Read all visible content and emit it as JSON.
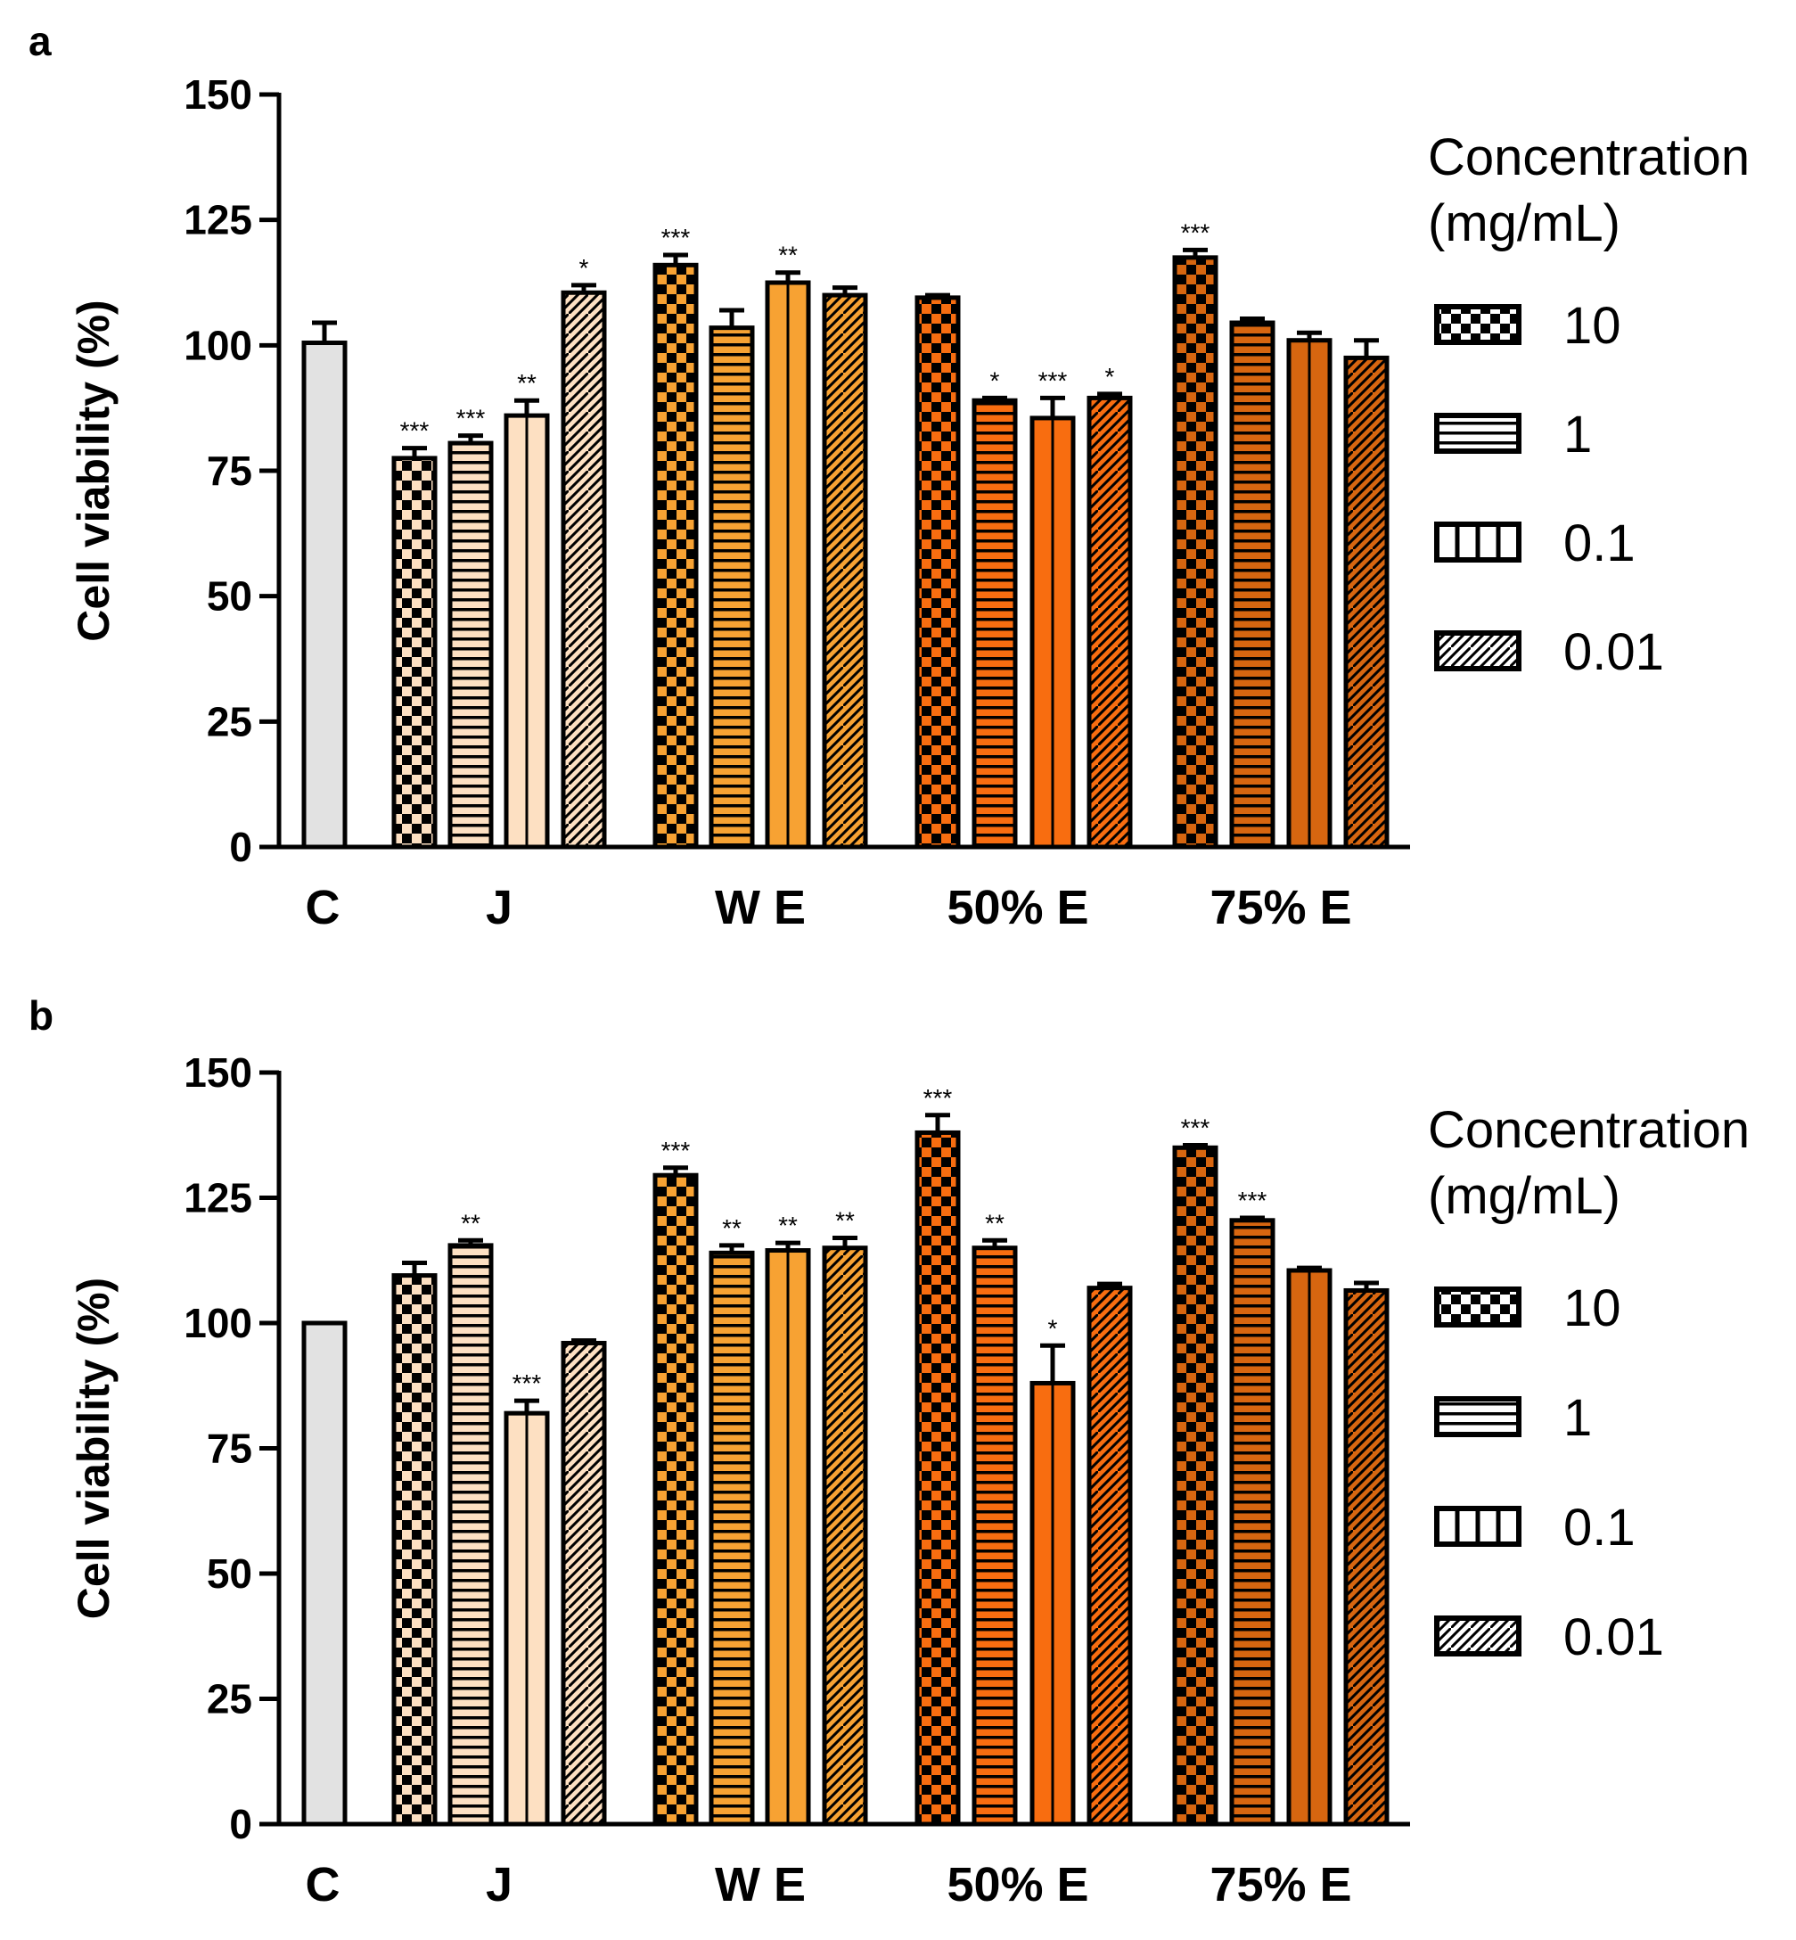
{
  "colors": {
    "control": "#e2e2e2",
    "J": "#fde0c2",
    "W E": "#f7a233",
    "50% E": "#f86d10",
    "75% E": "#d76610",
    "legend": "#ffffff",
    "stroke": "#000000"
  },
  "legend": {
    "title_line1": "Concentration",
    "title_line2": "(mg/mL)",
    "items": [
      {
        "label": "10",
        "pattern": "checker"
      },
      {
        "label": "1",
        "pattern": "hstripe"
      },
      {
        "label": "0.1",
        "pattern": "vstripe"
      },
      {
        "label": "0.01",
        "pattern": "diag"
      }
    ]
  },
  "chart_data": [
    {
      "panel": "a",
      "type": "bar",
      "ylabel": "Cell viability (%)",
      "ylim": [
        0,
        150
      ],
      "yticks": [
        "0",
        "25",
        "50",
        "75",
        "100",
        "125",
        "150"
      ],
      "groups": [
        "C",
        "J",
        "W E",
        "50% E",
        "75% E"
      ],
      "series_concentrations": [
        "10",
        "1",
        "0.1",
        "0.01"
      ],
      "bars": [
        {
          "group": "C",
          "concentration": "control",
          "value": 100.5,
          "err": 4.0,
          "sig": ""
        },
        {
          "group": "J",
          "concentration": "10",
          "value": 77.5,
          "err": 2.0,
          "sig": "***"
        },
        {
          "group": "J",
          "concentration": "1",
          "value": 80.5,
          "err": 1.5,
          "sig": "***"
        },
        {
          "group": "J",
          "concentration": "0.1",
          "value": 86.0,
          "err": 3.0,
          "sig": "**"
        },
        {
          "group": "J",
          "concentration": "0.01",
          "value": 110.5,
          "err": 1.5,
          "sig": "*"
        },
        {
          "group": "W E",
          "concentration": "10",
          "value": 116.0,
          "err": 2.0,
          "sig": "***"
        },
        {
          "group": "W E",
          "concentration": "1",
          "value": 103.5,
          "err": 3.5,
          "sig": ""
        },
        {
          "group": "W E",
          "concentration": "0.1",
          "value": 112.5,
          "err": 2.0,
          "sig": "**"
        },
        {
          "group": "W E",
          "concentration": "0.01",
          "value": 110.0,
          "err": 1.5,
          "sig": ""
        },
        {
          "group": "50% E",
          "concentration": "10",
          "value": 109.5,
          "err": 0.5,
          "sig": ""
        },
        {
          "group": "50% E",
          "concentration": "1",
          "value": 89.0,
          "err": 0.5,
          "sig": "*"
        },
        {
          "group": "50% E",
          "concentration": "0.1",
          "value": 85.5,
          "err": 4.0,
          "sig": "***"
        },
        {
          "group": "50% E",
          "concentration": "0.01",
          "value": 89.5,
          "err": 0.8,
          "sig": "*"
        },
        {
          "group": "75% E",
          "concentration": "10",
          "value": 117.5,
          "err": 1.5,
          "sig": "***"
        },
        {
          "group": "75% E",
          "concentration": "1",
          "value": 104.5,
          "err": 0.8,
          "sig": ""
        },
        {
          "group": "75% E",
          "concentration": "0.1",
          "value": 101.0,
          "err": 1.5,
          "sig": ""
        },
        {
          "group": "75% E",
          "concentration": "0.01",
          "value": 97.5,
          "err": 3.5,
          "sig": ""
        }
      ]
    },
    {
      "panel": "b",
      "type": "bar",
      "ylabel": "Cell viability (%)",
      "ylim": [
        0,
        150
      ],
      "yticks": [
        "0",
        "25",
        "50",
        "75",
        "100",
        "125",
        "150"
      ],
      "groups": [
        "C",
        "J",
        "W E",
        "50% E",
        "75% E"
      ],
      "series_concentrations": [
        "10",
        "1",
        "0.1",
        "0.01"
      ],
      "bars": [
        {
          "group": "C",
          "concentration": "control",
          "value": 100.0,
          "err": 0,
          "sig": ""
        },
        {
          "group": "J",
          "concentration": "10",
          "value": 109.5,
          "err": 2.5,
          "sig": ""
        },
        {
          "group": "J",
          "concentration": "1",
          "value": 115.5,
          "err": 1.0,
          "sig": "**"
        },
        {
          "group": "J",
          "concentration": "0.1",
          "value": 82.0,
          "err": 2.5,
          "sig": "***"
        },
        {
          "group": "J",
          "concentration": "0.01",
          "value": 96.0,
          "err": 0.5,
          "sig": ""
        },
        {
          "group": "W E",
          "concentration": "10",
          "value": 129.5,
          "err": 1.5,
          "sig": "***"
        },
        {
          "group": "W E",
          "concentration": "1",
          "value": 114.0,
          "err": 1.5,
          "sig": "**"
        },
        {
          "group": "W E",
          "concentration": "0.1",
          "value": 114.5,
          "err": 1.5,
          "sig": "**"
        },
        {
          "group": "W E",
          "concentration": "0.01",
          "value": 115.0,
          "err": 2.0,
          "sig": "**"
        },
        {
          "group": "50% E",
          "concentration": "10",
          "value": 138.0,
          "err": 3.5,
          "sig": "***"
        },
        {
          "group": "50% E",
          "concentration": "1",
          "value": 115.0,
          "err": 1.5,
          "sig": "**"
        },
        {
          "group": "50% E",
          "concentration": "0.1",
          "value": 88.0,
          "err": 7.5,
          "sig": "*"
        },
        {
          "group": "50% E",
          "concentration": "0.01",
          "value": 107.0,
          "err": 0.8,
          "sig": ""
        },
        {
          "group": "75% E",
          "concentration": "10",
          "value": 135.0,
          "err": 0.5,
          "sig": "***"
        },
        {
          "group": "75% E",
          "concentration": "1",
          "value": 120.5,
          "err": 0.5,
          "sig": "***"
        },
        {
          "group": "75% E",
          "concentration": "0.1",
          "value": 110.5,
          "err": 0.5,
          "sig": ""
        },
        {
          "group": "75% E",
          "concentration": "0.01",
          "value": 106.5,
          "err": 1.5,
          "sig": ""
        }
      ]
    }
  ]
}
